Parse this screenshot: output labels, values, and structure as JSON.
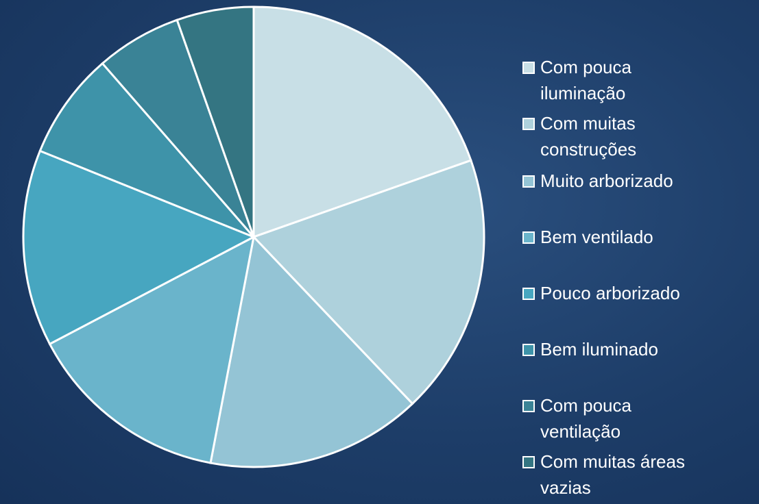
{
  "chart_data": {
    "type": "pie",
    "categories": [
      "Com pouca iluminação",
      "Com muitas construções",
      "Muito arborizado",
      "Bem ventilado",
      "Pouco arborizado",
      "Bem iluminado",
      "Com pouca ventilação",
      "Com muitas áreas vazias"
    ],
    "values": [
      19.6,
      18.3,
      15.1,
      14.3,
      13.8,
      7.5,
      6.0,
      5.4
    ],
    "colors": [
      "#c8dfe6",
      "#aed1dc",
      "#94c4d5",
      "#6ab4cb",
      "#47a6c0",
      "#3e93a9",
      "#3a8396",
      "#347582"
    ],
    "legend": "right"
  }
}
